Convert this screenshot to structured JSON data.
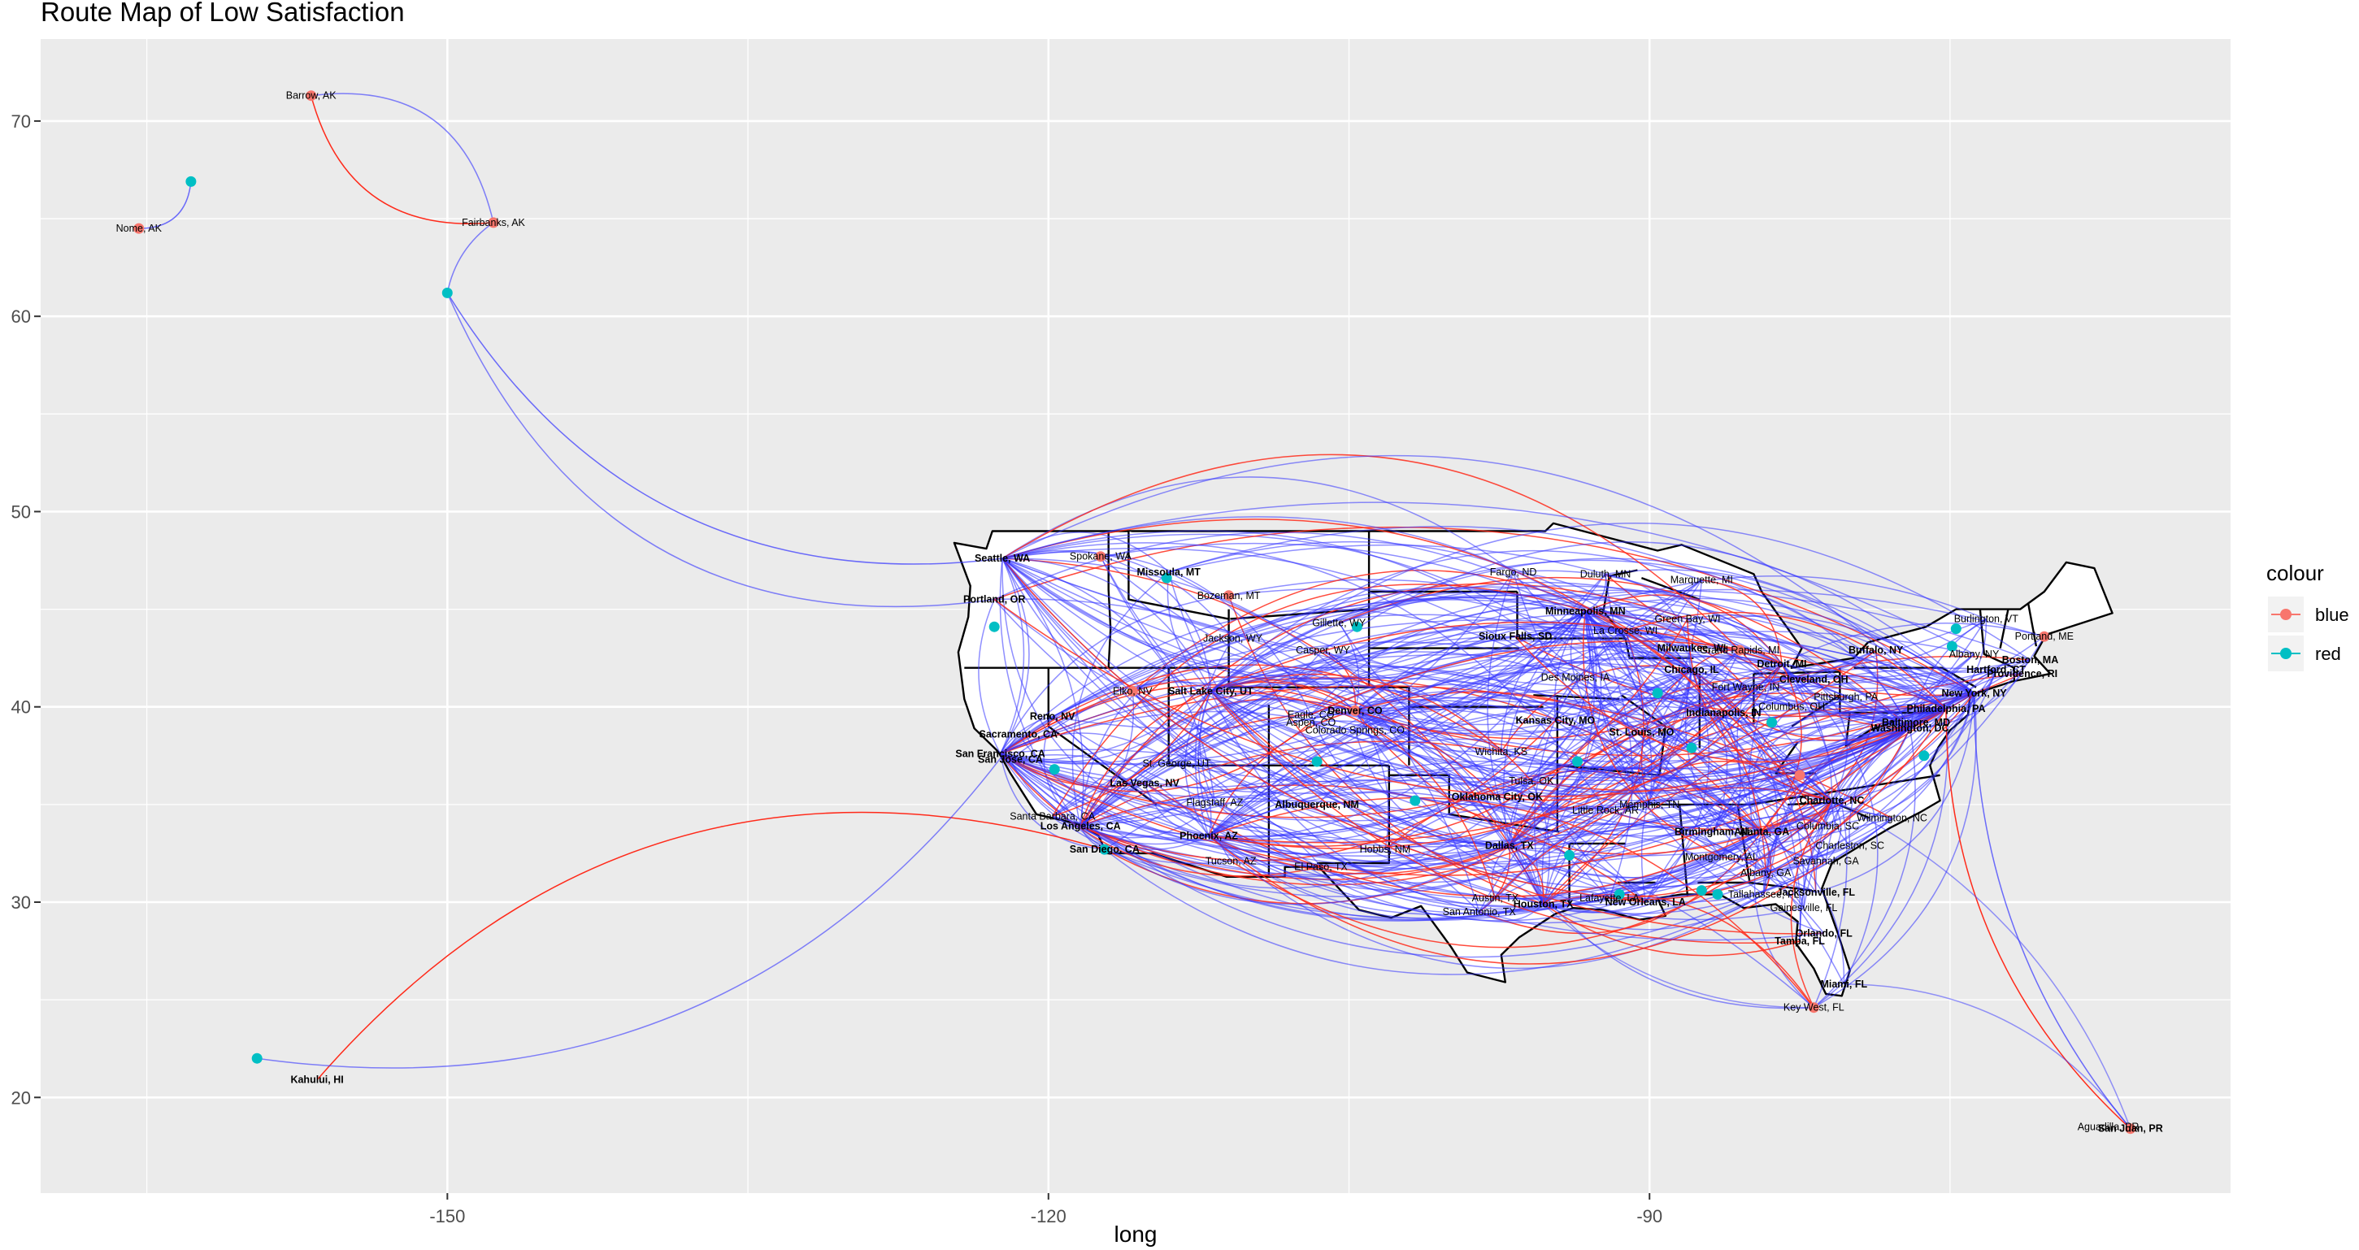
{
  "chart_data": {
    "type": "scatter",
    "title": "Route Map of Low Satisfaction",
    "xlabel": "long",
    "ylabel": "",
    "xlim": [
      -170.3,
      -61.0
    ],
    "ylim": [
      15.1,
      74.2
    ],
    "x_ticks": [
      -150,
      -120,
      -90
    ],
    "x_tick_labels": [
      "-150",
      "-120",
      "-90"
    ],
    "y_ticks": [
      20,
      30,
      40,
      50,
      60,
      70
    ],
    "y_tick_labels": [
      "20",
      "30",
      "40",
      "50",
      "60",
      "70"
    ],
    "grid": true,
    "legend": {
      "title": "colour",
      "placement": "right",
      "entries": [
        {
          "label": "blue",
          "color": "#F8766D"
        },
        {
          "label": "red",
          "color": "#00BFC4"
        }
      ]
    },
    "route_colors": {
      "blue": "#3333ff",
      "red": "#ff2a1a"
    },
    "cities": [
      {
        "name": "Barrow, AK",
        "lon": -156.8,
        "lat": 71.3,
        "bold": false
      },
      {
        "name": "Nome, AK",
        "lon": -165.4,
        "lat": 64.5,
        "bold": false
      },
      {
        "name": "Fairbanks, AK",
        "lon": -147.7,
        "lat": 64.8,
        "bold": false
      },
      {
        "name": "Kahului, HI",
        "lon": -156.5,
        "lat": 20.9,
        "bold": true
      },
      {
        "name": "Seattle, WA",
        "lon": -122.3,
        "lat": 47.6,
        "bold": true
      },
      {
        "name": "Portland, OR",
        "lon": -122.7,
        "lat": 45.5,
        "bold": true
      },
      {
        "name": "Spokane, WA",
        "lon": -117.4,
        "lat": 47.7,
        "bold": false
      },
      {
        "name": "Missoula, MT",
        "lon": -114.0,
        "lat": 46.9,
        "bold": true
      },
      {
        "name": "Bozeman, MT",
        "lon": -111.0,
        "lat": 45.7,
        "bold": false
      },
      {
        "name": "Gillette, WY",
        "lon": -105.5,
        "lat": 44.3,
        "bold": false
      },
      {
        "name": "Jackson, WY",
        "lon": -110.8,
        "lat": 43.5,
        "bold": false
      },
      {
        "name": "Casper, WY",
        "lon": -106.3,
        "lat": 42.9,
        "bold": false
      },
      {
        "name": "Elko, NV",
        "lon": -115.8,
        "lat": 40.8,
        "bold": false
      },
      {
        "name": "Salt Lake City, UT",
        "lon": -111.9,
        "lat": 40.8,
        "bold": true
      },
      {
        "name": "Reno, NV",
        "lon": -119.8,
        "lat": 39.5,
        "bold": true
      },
      {
        "name": "Sacramento, CA",
        "lon": -121.5,
        "lat": 38.6,
        "bold": true
      },
      {
        "name": "San Francisco, CA",
        "lon": -122.4,
        "lat": 37.6,
        "bold": true
      },
      {
        "name": "San Jose, CA",
        "lon": -121.9,
        "lat": 37.3,
        "bold": true
      },
      {
        "name": "St. George, UT",
        "lon": -113.6,
        "lat": 37.1,
        "bold": false
      },
      {
        "name": "Las Vegas, NV",
        "lon": -115.2,
        "lat": 36.1,
        "bold": true
      },
      {
        "name": "Santa Barbara, CA",
        "lon": -119.8,
        "lat": 34.4,
        "bold": false
      },
      {
        "name": "Los Angeles, CA",
        "lon": -118.4,
        "lat": 33.9,
        "bold": true
      },
      {
        "name": "Flagstaff, AZ",
        "lon": -111.7,
        "lat": 35.1,
        "bold": false
      },
      {
        "name": "Phoenix, AZ",
        "lon": -112.0,
        "lat": 33.4,
        "bold": true
      },
      {
        "name": "San Diego, CA",
        "lon": -117.2,
        "lat": 32.7,
        "bold": true
      },
      {
        "name": "Tucson, AZ",
        "lon": -110.9,
        "lat": 32.1,
        "bold": false
      },
      {
        "name": "Eagle, CO",
        "lon": -106.9,
        "lat": 39.6,
        "bold": false
      },
      {
        "name": "Denver, CO",
        "lon": -104.7,
        "lat": 39.8,
        "bold": true
      },
      {
        "name": "Aspen, CO",
        "lon": -106.9,
        "lat": 39.2,
        "bold": false
      },
      {
        "name": "Colorado Springs, CO",
        "lon": -104.7,
        "lat": 38.8,
        "bold": false
      },
      {
        "name": "Albuquerque, NM",
        "lon": -106.6,
        "lat": 35.0,
        "bold": true
      },
      {
        "name": "El Paso, TX",
        "lon": -106.4,
        "lat": 31.8,
        "bold": false
      },
      {
        "name": "Hobbs, NM",
        "lon": -103.2,
        "lat": 32.7,
        "bold": false
      },
      {
        "name": "Fargo, ND",
        "lon": -96.8,
        "lat": 46.9,
        "bold": false
      },
      {
        "name": "Duluth, MN",
        "lon": -92.2,
        "lat": 46.8,
        "bold": false
      },
      {
        "name": "Marquette, MI",
        "lon": -87.4,
        "lat": 46.5,
        "bold": false
      },
      {
        "name": "Minneapolis, MN",
        "lon": -93.2,
        "lat": 44.9,
        "bold": true
      },
      {
        "name": "Sioux Falls, SD",
        "lon": -96.7,
        "lat": 43.6,
        "bold": true
      },
      {
        "name": "La Crosse, WI",
        "lon": -91.2,
        "lat": 43.9,
        "bold": false
      },
      {
        "name": "Green Bay, WI",
        "lon": -88.1,
        "lat": 44.5,
        "bold": false
      },
      {
        "name": "Milwaukee, WI",
        "lon": -87.9,
        "lat": 43.0,
        "bold": true
      },
      {
        "name": "Grand Rapids, MI",
        "lon": -85.5,
        "lat": 42.9,
        "bold": false
      },
      {
        "name": "Des Moines, IA",
        "lon": -93.7,
        "lat": 41.5,
        "bold": false
      },
      {
        "name": "Chicago, IL",
        "lon": -87.9,
        "lat": 41.9,
        "bold": true
      },
      {
        "name": "Detroit, MI",
        "lon": -83.4,
        "lat": 42.2,
        "bold": true
      },
      {
        "name": "Fort Wayne, IN",
        "lon": -85.2,
        "lat": 41.0,
        "bold": false
      },
      {
        "name": "Cleveland, OH",
        "lon": -81.8,
        "lat": 41.4,
        "bold": true
      },
      {
        "name": "Kansas City, MO",
        "lon": -94.7,
        "lat": 39.3,
        "bold": true
      },
      {
        "name": "St. Louis, MO",
        "lon": -90.4,
        "lat": 38.7,
        "bold": true
      },
      {
        "name": "Indianapolis, IN",
        "lon": -86.3,
        "lat": 39.7,
        "bold": true
      },
      {
        "name": "Columbus, OH",
        "lon": -82.9,
        "lat": 40.0,
        "bold": false
      },
      {
        "name": "Pittsburgh, PA",
        "lon": -80.2,
        "lat": 40.5,
        "bold": false
      },
      {
        "name": "Wichita, KS",
        "lon": -97.4,
        "lat": 37.7,
        "bold": false
      },
      {
        "name": "Tulsa, OK",
        "lon": -95.9,
        "lat": 36.2,
        "bold": false
      },
      {
        "name": "Oklahoma City, OK",
        "lon": -97.6,
        "lat": 35.4,
        "bold": true
      },
      {
        "name": "Little Rock, AR",
        "lon": -92.2,
        "lat": 34.7,
        "bold": false
      },
      {
        "name": "Memphis, TN",
        "lon": -90.0,
        "lat": 35.0,
        "bold": false
      },
      {
        "name": "Dallas, TX",
        "lon": -97.0,
        "lat": 32.9,
        "bold": true
      },
      {
        "name": "Austin, TX",
        "lon": -97.7,
        "lat": 30.2,
        "bold": false
      },
      {
        "name": "San Antonio, TX",
        "lon": -98.5,
        "lat": 29.5,
        "bold": false
      },
      {
        "name": "Houston, TX",
        "lon": -95.3,
        "lat": 29.9,
        "bold": true
      },
      {
        "name": "Lafayette, LA",
        "lon": -92.0,
        "lat": 30.2,
        "bold": false
      },
      {
        "name": "New Orleans, LA",
        "lon": -90.2,
        "lat": 30.0,
        "bold": true
      },
      {
        "name": "Birmingham, AL",
        "lon": -86.8,
        "lat": 33.6,
        "bold": true
      },
      {
        "name": "Atlanta, GA",
        "lon": -84.4,
        "lat": 33.6,
        "bold": true
      },
      {
        "name": "Montgomery, AL",
        "lon": -86.4,
        "lat": 32.3,
        "bold": false
      },
      {
        "name": "Albany, GA",
        "lon": -84.2,
        "lat": 31.5,
        "bold": false
      },
      {
        "name": "Tallahassee, FL",
        "lon": -84.3,
        "lat": 30.4,
        "bold": false
      },
      {
        "name": "Jacksonville, FL",
        "lon": -81.7,
        "lat": 30.5,
        "bold": true
      },
      {
        "name": "Gainesville, FL",
        "lon": -82.3,
        "lat": 29.7,
        "bold": false
      },
      {
        "name": "Orlando, FL",
        "lon": -81.3,
        "lat": 28.4,
        "bold": true
      },
      {
        "name": "Tampa, FL",
        "lon": -82.5,
        "lat": 28.0,
        "bold": true
      },
      {
        "name": "Miami, FL",
        "lon": -80.3,
        "lat": 25.8,
        "bold": true
      },
      {
        "name": "Key West, FL",
        "lon": -81.8,
        "lat": 24.6,
        "bold": false
      },
      {
        "name": "Charlotte, NC",
        "lon": -80.9,
        "lat": 35.2,
        "bold": true
      },
      {
        "name": "Columbia, SC",
        "lon": -81.1,
        "lat": 33.9,
        "bold": false
      },
      {
        "name": "Wilmington, NC",
        "lon": -77.9,
        "lat": 34.3,
        "bold": false
      },
      {
        "name": "Charleston, SC",
        "lon": -80.0,
        "lat": 32.9,
        "bold": false
      },
      {
        "name": "Savannah, GA",
        "lon": -81.2,
        "lat": 32.1,
        "bold": false
      },
      {
        "name": "Buffalo, NY",
        "lon": -78.7,
        "lat": 42.9,
        "bold": true
      },
      {
        "name": "Albany, NY",
        "lon": -73.8,
        "lat": 42.7,
        "bold": false
      },
      {
        "name": "Burlington, VT",
        "lon": -73.2,
        "lat": 44.5,
        "bold": false
      },
      {
        "name": "Portland, ME",
        "lon": -70.3,
        "lat": 43.6,
        "bold": false
      },
      {
        "name": "Boston, MA",
        "lon": -71.0,
        "lat": 42.4,
        "bold": true
      },
      {
        "name": "Hartford, CT",
        "lon": -72.7,
        "lat": 41.9,
        "bold": true
      },
      {
        "name": "Providence, RI",
        "lon": -71.4,
        "lat": 41.7,
        "bold": true
      },
      {
        "name": "New York, NY",
        "lon": -73.8,
        "lat": 40.7,
        "bold": true
      },
      {
        "name": "Philadelphia, PA",
        "lon": -75.2,
        "lat": 39.9,
        "bold": true
      },
      {
        "name": "Baltimore, MD",
        "lon": -76.7,
        "lat": 39.2,
        "bold": true
      },
      {
        "name": "Washington, DC",
        "lon": -77.0,
        "lat": 38.9,
        "bold": true
      },
      {
        "name": "Aguadilla, PR",
        "lon": -67.1,
        "lat": 18.5,
        "bold": false
      },
      {
        "name": "San Juan, PR",
        "lon": -66.0,
        "lat": 18.4,
        "bold": true
      }
    ],
    "points": [
      {
        "lon": -162.8,
        "lat": 66.9,
        "series": "red"
      },
      {
        "lon": -150.0,
        "lat": 61.2,
        "series": "red"
      },
      {
        "lon": -159.5,
        "lat": 22.0,
        "series": "red"
      },
      {
        "lon": -122.7,
        "lat": 44.1,
        "series": "red"
      },
      {
        "lon": -114.1,
        "lat": 46.6,
        "series": "red"
      },
      {
        "lon": -104.6,
        "lat": 44.1,
        "series": "red"
      },
      {
        "lon": -119.7,
        "lat": 36.8,
        "series": "red"
      },
      {
        "lon": -117.2,
        "lat": 32.7,
        "series": "red"
      },
      {
        "lon": -106.6,
        "lat": 37.2,
        "series": "red"
      },
      {
        "lon": -101.7,
        "lat": 35.2,
        "series": "red"
      },
      {
        "lon": -93.6,
        "lat": 37.2,
        "series": "red"
      },
      {
        "lon": -94.0,
        "lat": 32.4,
        "series": "red"
      },
      {
        "lon": -89.6,
        "lat": 40.7,
        "series": "red"
      },
      {
        "lon": -87.9,
        "lat": 37.9,
        "series": "red"
      },
      {
        "lon": -83.9,
        "lat": 39.2,
        "series": "red"
      },
      {
        "lon": -91.5,
        "lat": 30.4,
        "series": "red"
      },
      {
        "lon": -87.4,
        "lat": 30.6,
        "series": "red"
      },
      {
        "lon": -86.6,
        "lat": 30.4,
        "series": "red"
      },
      {
        "lon": -76.3,
        "lat": 37.5,
        "series": "red"
      },
      {
        "lon": -74.9,
        "lat": 43.1,
        "series": "red"
      },
      {
        "lon": -74.7,
        "lat": 44.0,
        "series": "red"
      },
      {
        "lon": -156.8,
        "lat": 71.3,
        "series": "blue"
      },
      {
        "lon": -165.4,
        "lat": 64.5,
        "series": "blue"
      },
      {
        "lon": -147.7,
        "lat": 64.8,
        "series": "blue"
      },
      {
        "lon": -117.4,
        "lat": 47.7,
        "series": "blue"
      },
      {
        "lon": -111.0,
        "lat": 45.7,
        "series": "blue"
      },
      {
        "lon": -115.8,
        "lat": 40.8,
        "series": "blue"
      },
      {
        "lon": -104.7,
        "lat": 39.8,
        "series": "blue"
      },
      {
        "lon": -82.5,
        "lat": 36.5,
        "series": "blue"
      },
      {
        "lon": -81.8,
        "lat": 24.6,
        "series": "blue"
      },
      {
        "lon": -66.0,
        "lat": 18.4,
        "series": "blue"
      },
      {
        "lon": -85.5,
        "lat": 42.9,
        "series": "blue"
      },
      {
        "lon": -70.3,
        "lat": 43.6,
        "series": "blue"
      }
    ]
  }
}
